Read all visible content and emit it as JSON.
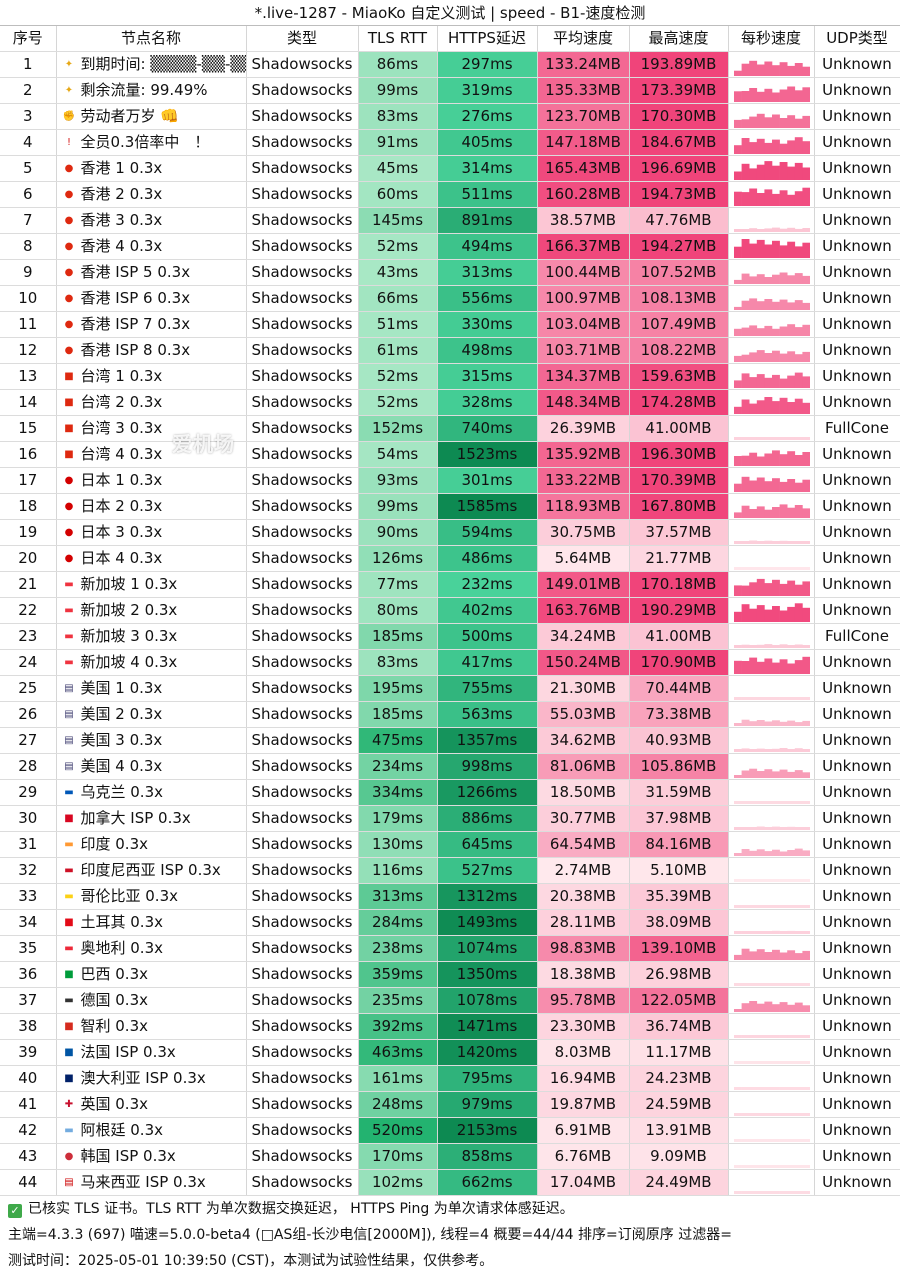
{
  "window_title": "*.live-1287 - MiaoKo 自定义测试 | speed - B1-速度检测",
  "columns": [
    "序号",
    "节点名称",
    "类型",
    "TLS RTT",
    "HTTPS延迟",
    "平均速度",
    "最高速度",
    "每秒速度",
    "UDP类型"
  ],
  "watermark": "爱机场",
  "rows": [
    {
      "idx": "1",
      "icon": "sparkle",
      "name": "到期时间: ▒▒▒▒-▒▒-▒▒",
      "type": "Shadowsocks",
      "tls": "86ms",
      "https": "297ms",
      "avg": "133.24MB",
      "max": "193.89MB",
      "udp": "Unknown"
    },
    {
      "idx": "2",
      "icon": "sparkle",
      "name": "剩余流量: 99.49%",
      "type": "Shadowsocks",
      "tls": "99ms",
      "https": "319ms",
      "avg": "135.33MB",
      "max": "173.39MB",
      "udp": "Unknown"
    },
    {
      "idx": "3",
      "icon": "fist",
      "name": "劳动者万岁 👊",
      "type": "Shadowsocks",
      "tls": "83ms",
      "https": "276ms",
      "avg": "123.70MB",
      "max": "170.30MB",
      "udp": "Unknown"
    },
    {
      "idx": "4",
      "icon": "exclaim",
      "name": "全员0.3倍率中　！",
      "type": "Shadowsocks",
      "tls": "91ms",
      "https": "405ms",
      "avg": "147.18MB",
      "max": "184.67MB",
      "udp": "Unknown"
    },
    {
      "idx": "5",
      "icon": "hk",
      "name": "香港 1 0.3x",
      "type": "Shadowsocks",
      "tls": "45ms",
      "https": "314ms",
      "avg": "165.43MB",
      "max": "196.69MB",
      "udp": "Unknown"
    },
    {
      "idx": "6",
      "icon": "hk",
      "name": "香港 2 0.3x",
      "type": "Shadowsocks",
      "tls": "60ms",
      "https": "511ms",
      "avg": "160.28MB",
      "max": "194.73MB",
      "udp": "Unknown"
    },
    {
      "idx": "7",
      "icon": "hk",
      "name": "香港 3 0.3x",
      "type": "Shadowsocks",
      "tls": "145ms",
      "https": "891ms",
      "avg": "38.57MB",
      "max": "47.76MB",
      "udp": "Unknown"
    },
    {
      "idx": "8",
      "icon": "hk",
      "name": "香港 4 0.3x",
      "type": "Shadowsocks",
      "tls": "52ms",
      "https": "494ms",
      "avg": "166.37MB",
      "max": "194.27MB",
      "udp": "Unknown"
    },
    {
      "idx": "9",
      "icon": "hk",
      "name": "香港 ISP 5 0.3x",
      "type": "Shadowsocks",
      "tls": "43ms",
      "https": "313ms",
      "avg": "100.44MB",
      "max": "107.52MB",
      "udp": "Unknown"
    },
    {
      "idx": "10",
      "icon": "hk",
      "name": "香港 ISP 6  0.3x",
      "type": "Shadowsocks",
      "tls": "66ms",
      "https": "556ms",
      "avg": "100.97MB",
      "max": "108.13MB",
      "udp": "Unknown"
    },
    {
      "idx": "11",
      "icon": "hk",
      "name": "香港 ISP 7 0.3x",
      "type": "Shadowsocks",
      "tls": "51ms",
      "https": "330ms",
      "avg": "103.04MB",
      "max": "107.49MB",
      "udp": "Unknown"
    },
    {
      "idx": "12",
      "icon": "hk",
      "name": "香港 ISP 8 0.3x",
      "type": "Shadowsocks",
      "tls": "61ms",
      "https": "498ms",
      "avg": "103.71MB",
      "max": "108.22MB",
      "udp": "Unknown"
    },
    {
      "idx": "13",
      "icon": "cn",
      "name": "台湾 1 0.3x",
      "type": "Shadowsocks",
      "tls": "52ms",
      "https": "315ms",
      "avg": "134.37MB",
      "max": "159.63MB",
      "udp": "Unknown"
    },
    {
      "idx": "14",
      "icon": "cn",
      "name": "台湾 2 0.3x",
      "type": "Shadowsocks",
      "tls": "52ms",
      "https": "328ms",
      "avg": "148.34MB",
      "max": "174.28MB",
      "udp": "Unknown"
    },
    {
      "idx": "15",
      "icon": "cn",
      "name": "台湾 3 0.3x",
      "type": "Shadowsocks",
      "tls": "152ms",
      "https": "740ms",
      "avg": "26.39MB",
      "max": "41.00MB",
      "udp": "FullCone"
    },
    {
      "idx": "16",
      "icon": "cn",
      "name": "台湾 4 0.3x",
      "type": "Shadowsocks",
      "tls": "54ms",
      "https": "1523ms",
      "avg": "135.92MB",
      "max": "196.30MB",
      "udp": "Unknown"
    },
    {
      "idx": "17",
      "icon": "jp",
      "name": "日本 1 0.3x",
      "type": "Shadowsocks",
      "tls": "93ms",
      "https": "301ms",
      "avg": "133.22MB",
      "max": "170.39MB",
      "udp": "Unknown"
    },
    {
      "idx": "18",
      "icon": "jp",
      "name": "日本 2 0.3x",
      "type": "Shadowsocks",
      "tls": "99ms",
      "https": "1585ms",
      "avg": "118.93MB",
      "max": "167.80MB",
      "udp": "Unknown"
    },
    {
      "idx": "19",
      "icon": "jp",
      "name": "日本 3 0.3x",
      "type": "Shadowsocks",
      "tls": "90ms",
      "https": "594ms",
      "avg": "30.75MB",
      "max": "37.57MB",
      "udp": "Unknown"
    },
    {
      "idx": "20",
      "icon": "jp",
      "name": "日本 4 0.3x",
      "type": "Shadowsocks",
      "tls": "126ms",
      "https": "486ms",
      "avg": "5.64MB",
      "max": "21.77MB",
      "udp": "Unknown"
    },
    {
      "idx": "21",
      "icon": "sg",
      "name": "新加坡 1 0.3x",
      "type": "Shadowsocks",
      "tls": "77ms",
      "https": "232ms",
      "avg": "149.01MB",
      "max": "170.18MB",
      "udp": "Unknown"
    },
    {
      "idx": "22",
      "icon": "sg",
      "name": "新加坡 2 0.3x",
      "type": "Shadowsocks",
      "tls": "80ms",
      "https": "402ms",
      "avg": "163.76MB",
      "max": "190.29MB",
      "udp": "Unknown"
    },
    {
      "idx": "23",
      "icon": "sg",
      "name": "新加坡 3 0.3x",
      "type": "Shadowsocks",
      "tls": "185ms",
      "https": "500ms",
      "avg": "34.24MB",
      "max": "41.00MB",
      "udp": "FullCone"
    },
    {
      "idx": "24",
      "icon": "sg",
      "name": "新加坡 4 0.3x",
      "type": "Shadowsocks",
      "tls": "83ms",
      "https": "417ms",
      "avg": "150.24MB",
      "max": "170.90MB",
      "udp": "Unknown"
    },
    {
      "idx": "25",
      "icon": "us",
      "name": "美国 1 0.3x",
      "type": "Shadowsocks",
      "tls": "195ms",
      "https": "755ms",
      "avg": "21.30MB",
      "max": "70.44MB",
      "udp": "Unknown"
    },
    {
      "idx": "26",
      "icon": "us",
      "name": "美国 2 0.3x",
      "type": "Shadowsocks",
      "tls": "185ms",
      "https": "563ms",
      "avg": "55.03MB",
      "max": "73.38MB",
      "udp": "Unknown"
    },
    {
      "idx": "27",
      "icon": "us",
      "name": "美国 3 0.3x",
      "type": "Shadowsocks",
      "tls": "475ms",
      "https": "1357ms",
      "avg": "34.62MB",
      "max": "40.93MB",
      "udp": "Unknown"
    },
    {
      "idx": "28",
      "icon": "us",
      "name": "美国 4 0.3x",
      "type": "Shadowsocks",
      "tls": "234ms",
      "https": "998ms",
      "avg": "81.06MB",
      "max": "105.86MB",
      "udp": "Unknown"
    },
    {
      "idx": "29",
      "icon": "ua",
      "name": "乌克兰 0.3x",
      "type": "Shadowsocks",
      "tls": "334ms",
      "https": "1266ms",
      "avg": "18.50MB",
      "max": "31.59MB",
      "udp": "Unknown"
    },
    {
      "idx": "30",
      "icon": "ca",
      "name": "加拿大 ISP 0.3x",
      "type": "Shadowsocks",
      "tls": "179ms",
      "https": "886ms",
      "avg": "30.77MB",
      "max": "37.98MB",
      "udp": "Unknown"
    },
    {
      "idx": "31",
      "icon": "in",
      "name": "印度 0.3x",
      "type": "Shadowsocks",
      "tls": "130ms",
      "https": "645ms",
      "avg": "64.54MB",
      "max": "84.16MB",
      "udp": "Unknown"
    },
    {
      "idx": "32",
      "icon": "id",
      "name": "印度尼西亚 ISP 0.3x",
      "type": "Shadowsocks",
      "tls": "116ms",
      "https": "527ms",
      "avg": "2.74MB",
      "max": "5.10MB",
      "udp": "Unknown"
    },
    {
      "idx": "33",
      "icon": "co",
      "name": "哥伦比亚 0.3x",
      "type": "Shadowsocks",
      "tls": "313ms",
      "https": "1312ms",
      "avg": "20.38MB",
      "max": "35.39MB",
      "udp": "Unknown"
    },
    {
      "idx": "34",
      "icon": "tr",
      "name": "土耳其 0.3x",
      "type": "Shadowsocks",
      "tls": "284ms",
      "https": "1493ms",
      "avg": "28.11MB",
      "max": "38.09MB",
      "udp": "Unknown"
    },
    {
      "idx": "35",
      "icon": "at",
      "name": "奥地利 0.3x",
      "type": "Shadowsocks",
      "tls": "238ms",
      "https": "1074ms",
      "avg": "98.83MB",
      "max": "139.10MB",
      "udp": "Unknown"
    },
    {
      "idx": "36",
      "icon": "br",
      "name": "巴西 0.3x",
      "type": "Shadowsocks",
      "tls": "359ms",
      "https": "1350ms",
      "avg": "18.38MB",
      "max": "26.98MB",
      "udp": "Unknown"
    },
    {
      "idx": "37",
      "icon": "de",
      "name": "德国 0.3x",
      "type": "Shadowsocks",
      "tls": "235ms",
      "https": "1078ms",
      "avg": "95.78MB",
      "max": "122.05MB",
      "udp": "Unknown"
    },
    {
      "idx": "38",
      "icon": "cl",
      "name": "智利 0.3x",
      "type": "Shadowsocks",
      "tls": "392ms",
      "https": "1471ms",
      "avg": "23.30MB",
      "max": "36.74MB",
      "udp": "Unknown"
    },
    {
      "idx": "39",
      "icon": "fr",
      "name": "法国 ISP 0.3x",
      "type": "Shadowsocks",
      "tls": "463ms",
      "https": "1420ms",
      "avg": "8.03MB",
      "max": "11.17MB",
      "udp": "Unknown"
    },
    {
      "idx": "40",
      "icon": "au",
      "name": "澳大利亚 ISP 0.3x",
      "type": "Shadowsocks",
      "tls": "161ms",
      "https": "795ms",
      "avg": "16.94MB",
      "max": "24.23MB",
      "udp": "Unknown"
    },
    {
      "idx": "41",
      "icon": "gb",
      "name": "英国 0.3x",
      "type": "Shadowsocks",
      "tls": "248ms",
      "https": "979ms",
      "avg": "19.87MB",
      "max": "24.59MB",
      "udp": "Unknown"
    },
    {
      "idx": "42",
      "icon": "ar",
      "name": "阿根廷 0.3x",
      "type": "Shadowsocks",
      "tls": "520ms",
      "https": "2153ms",
      "avg": "6.91MB",
      "max": "13.91MB",
      "udp": "Unknown"
    },
    {
      "idx": "43",
      "icon": "kr",
      "name": "韩国 ISP 0.3x",
      "type": "Shadowsocks",
      "tls": "170ms",
      "https": "858ms",
      "avg": "6.76MB",
      "max": "9.09MB",
      "udp": "Unknown"
    },
    {
      "idx": "44",
      "icon": "my",
      "name": "马来西亚 ISP 0.3x",
      "type": "Shadowsocks",
      "tls": "102ms",
      "https": "662ms",
      "avg": "17.04MB",
      "max": "24.49MB",
      "udp": "Unknown"
    }
  ],
  "footer": {
    "line1": "已核实 TLS 证书。TLS RTT 为单次数据交换延迟， HTTPS Ping 为单次请求体感延迟。",
    "line2": "主端=4.3.3 (697) 喵速=5.0.0-beta4 (□AS组-长沙电信[2000M]), 线程=4 概要=44/44 排序=订阅原序 过滤器=",
    "line3": "测试时间：2025-05-01 10:39:50 (CST)，本测试为试验性结果，仅供参考。"
  }
}
